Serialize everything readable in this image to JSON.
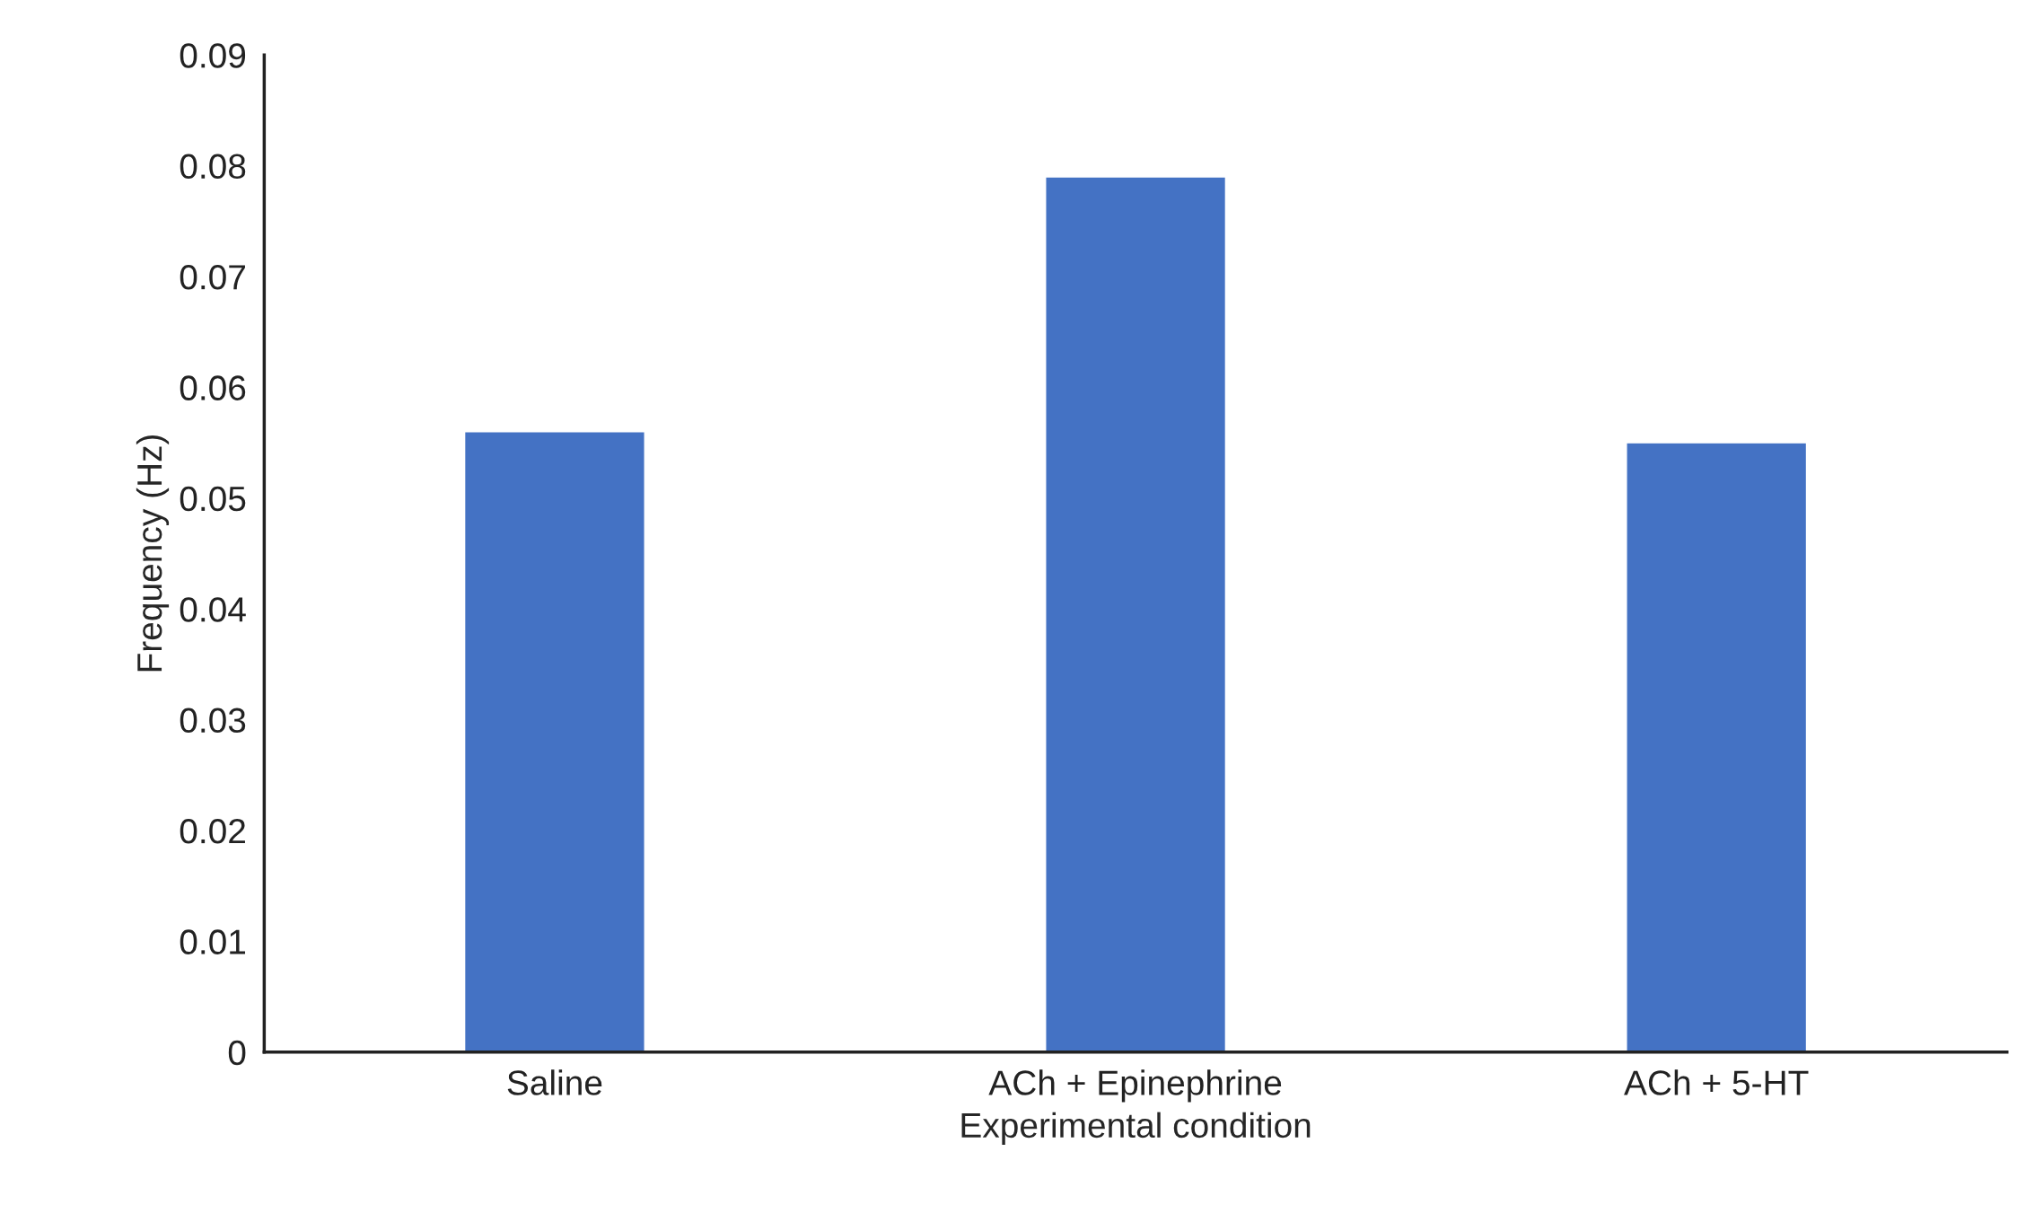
{
  "chart_data": {
    "type": "bar",
    "categories": [
      "Saline",
      "ACh + Epinephrine",
      "ACh + 5-HT"
    ],
    "values": [
      0.056,
      0.079,
      0.055
    ],
    "color": "#4472c4",
    "xlabel": "Experimental condition",
    "ylabel": "Frequency (Hz)",
    "ylim": [
      0,
      0.09
    ],
    "yticks": [
      0,
      0.01,
      0.02,
      0.03,
      0.04,
      0.05,
      0.06,
      0.07,
      0.08,
      0.09
    ],
    "grid": false
  }
}
